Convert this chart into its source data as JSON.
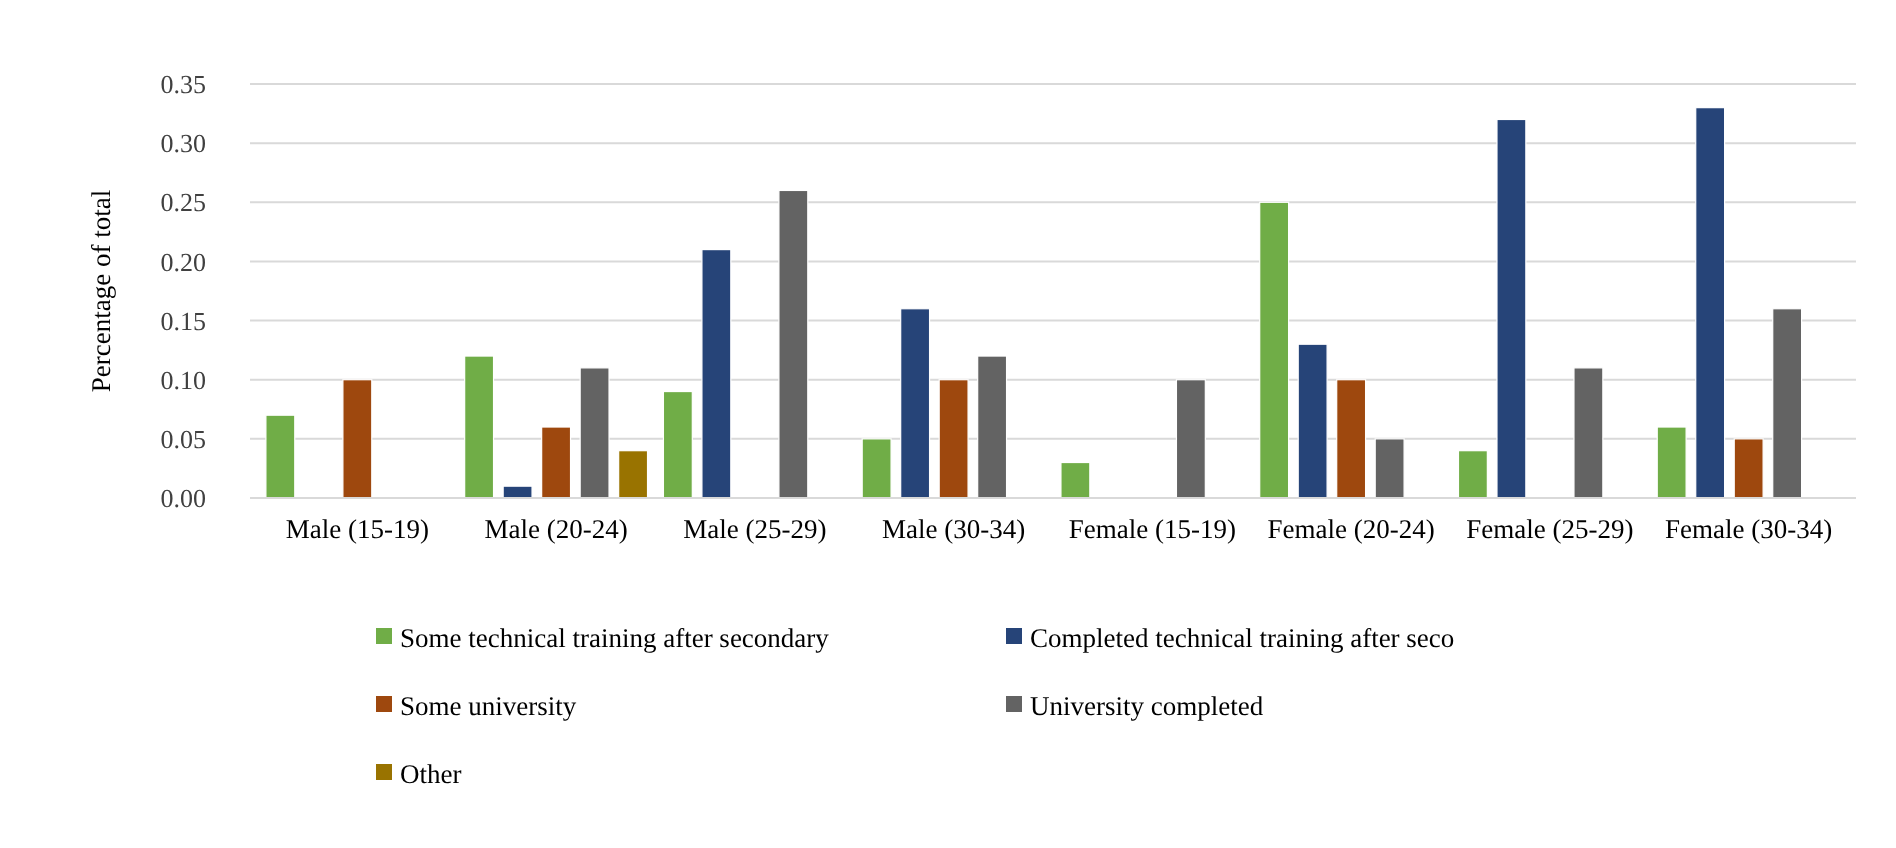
{
  "chart_data": {
    "type": "bar",
    "ylabel": "Percentage of total",
    "categories": [
      "Male (15-19)",
      "Male (20-24)",
      "Male (25-29)",
      "Male (30-34)",
      "Female (15-19)",
      "Female (20-24)",
      "Female (25-29)",
      "Female (30-34)"
    ],
    "series": [
      {
        "name": "Some technical training after secondary",
        "color": "#70ad47",
        "values": [
          0.07,
          0.12,
          0.09,
          0.05,
          0.03,
          0.25,
          0.04,
          0.06
        ]
      },
      {
        "name": "Completed technical training after seco",
        "color": "#264478",
        "values": [
          0,
          0.01,
          0.21,
          0.16,
          0,
          0.13,
          0.32,
          0.33
        ]
      },
      {
        "name": "Some university",
        "color": "#9e480e",
        "values": [
          0.1,
          0.06,
          0,
          0.1,
          0,
          0.1,
          0,
          0.05
        ]
      },
      {
        "name": "University completed",
        "color": "#636363",
        "values": [
          0,
          0.11,
          0.26,
          0.12,
          0.1,
          0.05,
          0.11,
          0.16
        ]
      },
      {
        "name": "Other",
        "color": "#997300",
        "values": [
          0,
          0.04,
          0,
          0,
          0,
          0,
          0,
          0
        ]
      }
    ],
    "ylim": [
      0,
      0.35
    ],
    "yticks": [
      {
        "value": 0,
        "label": "0.00"
      },
      {
        "value": 0.05,
        "label": "0.05"
      },
      {
        "value": 0.1,
        "label": "0.10"
      },
      {
        "value": 0.15,
        "label": "0.15"
      },
      {
        "value": 0.2,
        "label": "0.20"
      },
      {
        "value": 0.25,
        "label": "0.25"
      },
      {
        "value": 0.3,
        "label": "0.30"
      },
      {
        "value": 0.35,
        "label": "0.35"
      }
    ],
    "grid": "y",
    "legend": "bottom"
  }
}
